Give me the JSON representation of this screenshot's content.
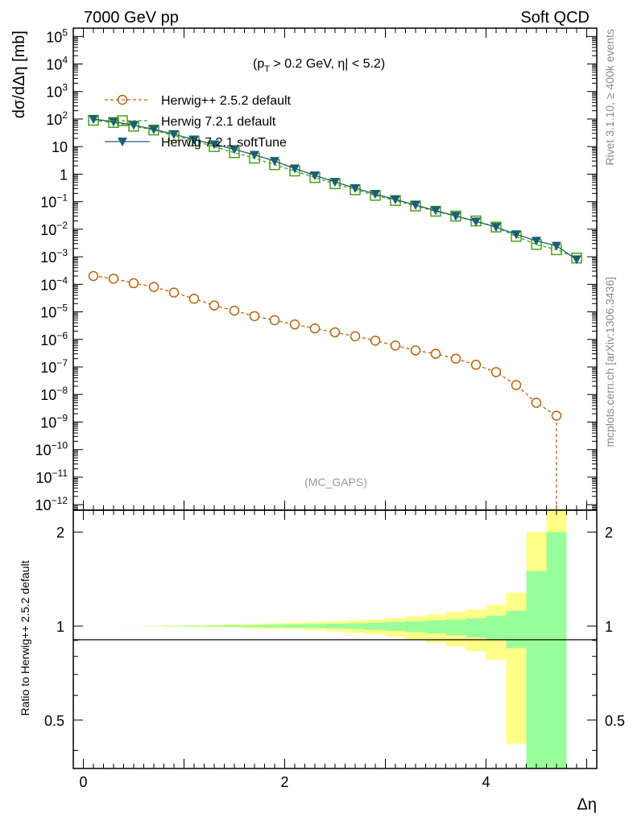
{
  "header": {
    "left": "7000 GeV pp",
    "right": "Soft QCD"
  },
  "side_labels": {
    "rivet": "Rivet 3.1.10, ≥ 400k events",
    "mcplots": "mcplots.cern.ch [arXiv:1306.3436]"
  },
  "watermark": "(MC_GAPS)",
  "colors": {
    "herwigpp": "#b8630f",
    "h721default": "#4a9e1e",
    "h721soft": "#1c5e72",
    "band_yellow": "#ffff88",
    "band_green": "#99ff99"
  },
  "chart_data": [
    {
      "type": "line",
      "panel": "main",
      "ylabel": "dσ/dΔη [mb]",
      "yscale": "log",
      "ylim_log10": [
        -12.2,
        5.3
      ],
      "xlim": [
        -0.1,
        5.1
      ],
      "annotation": {
        "text1": "(p",
        "sub": "T",
        "text2": " > 0.2 GeV, η| < 5.2)"
      },
      "y_ticks": [
        {
          "exp": 5,
          "label": "10",
          "sup": "5"
        },
        {
          "exp": 4,
          "label": "10",
          "sup": "4"
        },
        {
          "exp": 3,
          "label": "10",
          "sup": "3"
        },
        {
          "exp": 2,
          "label": "10",
          "sup": "2"
        },
        {
          "exp": 1,
          "label": "10",
          "sup": ""
        },
        {
          "exp": 0,
          "label": "1",
          "sup": ""
        },
        {
          "exp": -1,
          "label": "10",
          "sup": "−1"
        },
        {
          "exp": -2,
          "label": "10",
          "sup": "−2"
        },
        {
          "exp": -3,
          "label": "10",
          "sup": "−3"
        },
        {
          "exp": -4,
          "label": "10",
          "sup": "−4"
        },
        {
          "exp": -5,
          "label": "10",
          "sup": "−5"
        },
        {
          "exp": -6,
          "label": "10",
          "sup": "−6"
        },
        {
          "exp": -7,
          "label": "10",
          "sup": "−7"
        },
        {
          "exp": -8,
          "label": "10",
          "sup": "−8"
        },
        {
          "exp": -9,
          "label": "10",
          "sup": "−9"
        },
        {
          "exp": -10,
          "label": "10",
          "sup": "−10"
        },
        {
          "exp": -11,
          "label": "10",
          "sup": "−11"
        },
        {
          "exp": -12,
          "label": "10",
          "sup": "−12"
        }
      ],
      "x": [
        0.1,
        0.3,
        0.5,
        0.7,
        0.9,
        1.1,
        1.3,
        1.5,
        1.7,
        1.9,
        2.1,
        2.3,
        2.5,
        2.7,
        2.9,
        3.1,
        3.3,
        3.5,
        3.7,
        3.9,
        4.1,
        4.3,
        4.5,
        4.7,
        4.9
      ],
      "series": [
        {
          "name": "Herwig++ 2.5.2 default",
          "marker": "open-circle",
          "dashed": true,
          "values": [
            0.0002,
            0.00016,
            0.00011,
            8e-05,
            5e-05,
            3e-05,
            1.7e-05,
            1.1e-05,
            7e-06,
            5e-06,
            3.5e-06,
            2.5e-06,
            1.8e-06,
            1.3e-06,
            9e-07,
            6e-07,
            4e-07,
            3e-07,
            2e-07,
            1.2e-07,
            6.5e-08,
            2.2e-08,
            5e-09,
            1.7e-09,
            null
          ]
        },
        {
          "name": "Herwig 7.2.1 default",
          "marker": "open-square",
          "dashed": true,
          "values": [
            90,
            75,
            55,
            40,
            25,
            16,
            10,
            6,
            3.8,
            2.2,
            1.3,
            0.75,
            0.45,
            0.27,
            0.17,
            0.11,
            0.07,
            0.045,
            0.03,
            0.02,
            0.012,
            0.0055,
            0.0028,
            0.0018,
            0.0009
          ]
        },
        {
          "name": "Herwig 7.2.1 softTune",
          "marker": "filled-triangle-down",
          "dashed": false,
          "values": [
            100,
            80,
            60,
            42,
            28,
            18,
            12,
            8,
            5,
            3,
            1.6,
            0.9,
            0.52,
            0.31,
            0.19,
            0.12,
            0.075,
            0.048,
            0.03,
            0.019,
            0.012,
            0.0065,
            0.0038,
            0.0025,
            0.0008
          ]
        }
      ]
    },
    {
      "type": "area",
      "panel": "ratio",
      "ylabel": "Ratio to Herwig++ 2.5.2 default",
      "xlabel": "Δη",
      "yscale": "log",
      "ylim": [
        0.35,
        2.35
      ],
      "y_ticks": [
        "0.5",
        "1",
        "2"
      ],
      "y_tick_values": [
        0.5,
        1,
        2
      ],
      "x_ticks": [
        "0",
        "2",
        "4"
      ],
      "x_tick_values": [
        0,
        2,
        4
      ],
      "x_edges": [
        0,
        0.2,
        0.4,
        0.6,
        0.8,
        1.0,
        1.2,
        1.4,
        1.6,
        1.8,
        2.0,
        2.2,
        2.4,
        2.6,
        2.8,
        3.0,
        3.2,
        3.4,
        3.6,
        3.8,
        4.0,
        4.2,
        4.4,
        4.6,
        4.8
      ],
      "green_up": [
        1.0,
        1.0,
        1.0,
        1.001,
        1.002,
        1.003,
        1.004,
        1.006,
        1.008,
        1.01,
        1.012,
        1.015,
        1.018,
        1.021,
        1.025,
        1.03,
        1.036,
        1.043,
        1.05,
        1.06,
        1.08,
        1.12,
        1.5,
        2.0
      ],
      "green_down": [
        1.0,
        1.0,
        1.0,
        0.999,
        0.998,
        0.997,
        0.996,
        0.994,
        0.992,
        0.99,
        0.988,
        0.985,
        0.982,
        0.978,
        0.972,
        0.965,
        0.957,
        0.948,
        0.935,
        0.92,
        0.9,
        0.85,
        0.35,
        0.35
      ],
      "yellow_up": [
        1.0,
        1.0,
        1.001,
        1.002,
        1.004,
        1.006,
        1.009,
        1.012,
        1.016,
        1.02,
        1.025,
        1.03,
        1.036,
        1.043,
        1.052,
        1.062,
        1.075,
        1.09,
        1.11,
        1.13,
        1.17,
        1.28,
        2.0,
        2.35
      ],
      "yellow_down": [
        1.0,
        1.0,
        0.999,
        0.998,
        0.996,
        0.994,
        0.991,
        0.988,
        0.984,
        0.98,
        0.975,
        0.968,
        0.96,
        0.95,
        0.94,
        0.925,
        0.905,
        0.885,
        0.86,
        0.83,
        0.78,
        0.42,
        0.37,
        0.35
      ]
    }
  ]
}
